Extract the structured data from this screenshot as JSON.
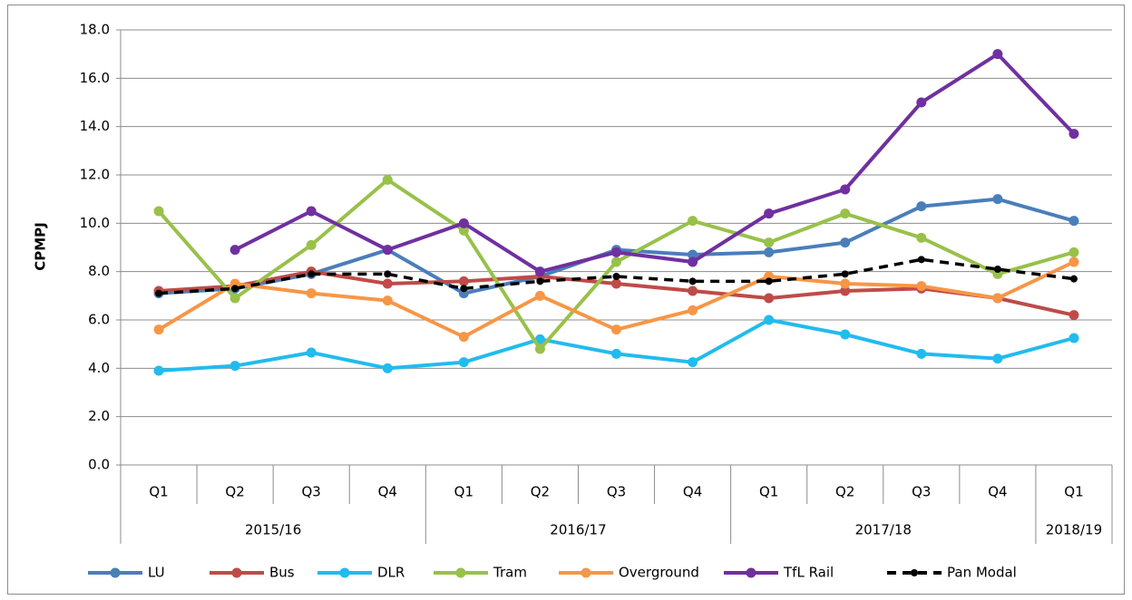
{
  "chart_data": {
    "type": "line",
    "y_label": "CPMPJ",
    "groups": [
      {
        "name": "2015/16",
        "quarters": [
          "Q1",
          "Q2",
          "Q3",
          "Q4"
        ]
      },
      {
        "name": "2016/17",
        "quarters": [
          "Q1",
          "Q2",
          "Q3",
          "Q4"
        ]
      },
      {
        "name": "2017/18",
        "quarters": [
          "Q1",
          "Q2",
          "Q3",
          "Q4"
        ]
      },
      {
        "name": "2018/19",
        "quarters": [
          "Q1"
        ]
      }
    ],
    "series": [
      {
        "name": "LU",
        "color": "#4a7ebb",
        "values": [
          7.1,
          7.3,
          7.9,
          8.9,
          7.1,
          7.8,
          8.9,
          8.7,
          8.8,
          9.2,
          10.7,
          11.0,
          10.1
        ]
      },
      {
        "name": "Bus",
        "color": "#be4b48",
        "values": [
          7.2,
          7.4,
          8.0,
          7.5,
          7.6,
          7.8,
          7.5,
          7.2,
          6.9,
          7.2,
          7.3,
          6.9,
          6.2
        ]
      },
      {
        "name": "DLR",
        "color": "#22bbee",
        "values": [
          3.9,
          4.1,
          4.65,
          4.0,
          4.25,
          5.2,
          4.6,
          4.25,
          6.0,
          5.4,
          4.6,
          4.4,
          5.25
        ]
      },
      {
        "name": "Tram",
        "color": "#98c14a",
        "values": [
          10.5,
          6.9,
          9.1,
          11.8,
          9.7,
          4.8,
          8.4,
          10.1,
          9.2,
          10.4,
          9.4,
          7.9,
          8.8
        ]
      },
      {
        "name": "Overground",
        "color": "#f79646",
        "values": [
          5.6,
          7.5,
          7.1,
          6.8,
          5.3,
          7.0,
          5.6,
          6.4,
          7.8,
          7.5,
          7.4,
          6.9,
          8.4
        ]
      },
      {
        "name": "TfL Rail",
        "color": "#7030a0",
        "values": [
          null,
          8.9,
          10.5,
          8.9,
          10.0,
          8.0,
          8.8,
          8.4,
          10.4,
          11.4,
          15.0,
          17.0,
          13.7
        ]
      },
      {
        "name": "Pan Modal",
        "color": "#000000",
        "dashed": true,
        "values": [
          7.1,
          7.3,
          7.9,
          7.9,
          7.3,
          7.6,
          7.8,
          7.6,
          7.6,
          7.9,
          8.5,
          8.1,
          7.7
        ]
      }
    ],
    "ylim": [
      0,
      18
    ],
    "yticks": [
      {
        "value": 0,
        "label": "0.0"
      },
      {
        "value": 2,
        "label": "2.0"
      },
      {
        "value": 4,
        "label": "4.0"
      },
      {
        "value": 6,
        "label": "6.0"
      },
      {
        "value": 8,
        "label": "8.0"
      },
      {
        "value": 10,
        "label": "10.0"
      },
      {
        "value": 12,
        "label": "12.0"
      },
      {
        "value": 14,
        "label": "14.0"
      },
      {
        "value": 16,
        "label": "16.0"
      },
      {
        "value": 18,
        "label": "18.0"
      }
    ],
    "grid": true,
    "legend": "bottom"
  }
}
